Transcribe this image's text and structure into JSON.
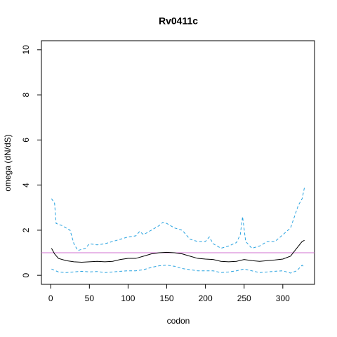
{
  "chart_data": {
    "type": "line",
    "title": "Rv0411c",
    "x_label": "codon",
    "y_label": "omega (dN/dS)",
    "xlim": [
      -12,
      341
    ],
    "xticks": [
      0,
      50,
      100,
      150,
      200,
      250,
      300
    ],
    "ylim": [
      -0.4,
      10.4
    ],
    "yticks": [
      0,
      2,
      4,
      6,
      8,
      10
    ],
    "hline": {
      "value": 1,
      "color": "#d070d0"
    },
    "series": [
      {
        "color": "#000000",
        "dashed": false,
        "x": [
          1,
          5,
          10,
          20,
          30,
          40,
          50,
          60,
          70,
          80,
          90,
          100,
          110,
          120,
          130,
          140,
          150,
          160,
          170,
          180,
          190,
          200,
          210,
          220,
          230,
          240,
          250,
          260,
          270,
          280,
          290,
          300,
          310,
          318,
          325,
          328
        ],
        "values": [
          1.2,
          0.95,
          0.75,
          0.65,
          0.6,
          0.58,
          0.6,
          0.62,
          0.6,
          0.62,
          0.7,
          0.75,
          0.75,
          0.85,
          0.95,
          1.0,
          1.02,
          1.0,
          0.95,
          0.85,
          0.75,
          0.72,
          0.7,
          0.62,
          0.6,
          0.62,
          0.7,
          0.65,
          0.62,
          0.65,
          0.68,
          0.72,
          0.85,
          1.2,
          1.5,
          1.55
        ]
      },
      {
        "color": "#29a3e0",
        "dashed": true,
        "x": [
          1,
          5,
          7,
          15,
          25,
          30,
          35,
          45,
          50,
          60,
          70,
          80,
          90,
          100,
          110,
          115,
          120,
          130,
          140,
          145,
          150,
          160,
          170,
          180,
          190,
          200,
          205,
          210,
          220,
          230,
          240,
          245,
          248,
          252,
          260,
          270,
          280,
          290,
          300,
          310,
          315,
          320,
          325,
          328
        ],
        "values": [
          3.4,
          3.2,
          2.3,
          2.2,
          2.0,
          1.4,
          1.1,
          1.2,
          1.4,
          1.35,
          1.4,
          1.5,
          1.6,
          1.7,
          1.75,
          1.95,
          1.8,
          2.0,
          2.2,
          2.35,
          2.3,
          2.1,
          2.0,
          1.6,
          1.5,
          1.5,
          1.7,
          1.4,
          1.2,
          1.3,
          1.45,
          1.8,
          2.6,
          1.5,
          1.2,
          1.3,
          1.5,
          1.5,
          1.8,
          2.1,
          2.6,
          3.1,
          3.4,
          3.9
        ]
      },
      {
        "color": "#29a3e0",
        "dashed": true,
        "x": [
          1,
          10,
          20,
          30,
          40,
          50,
          60,
          70,
          80,
          90,
          100,
          110,
          120,
          130,
          140,
          150,
          160,
          170,
          180,
          190,
          200,
          210,
          220,
          230,
          240,
          250,
          260,
          270,
          280,
          290,
          300,
          310,
          318,
          325,
          328
        ],
        "values": [
          0.28,
          0.15,
          0.12,
          0.15,
          0.18,
          0.15,
          0.17,
          0.12,
          0.15,
          0.18,
          0.2,
          0.2,
          0.25,
          0.35,
          0.42,
          0.45,
          0.4,
          0.3,
          0.25,
          0.2,
          0.2,
          0.2,
          0.12,
          0.15,
          0.2,
          0.28,
          0.2,
          0.12,
          0.15,
          0.18,
          0.2,
          0.1,
          0.2,
          0.45,
          0.35
        ]
      }
    ]
  }
}
